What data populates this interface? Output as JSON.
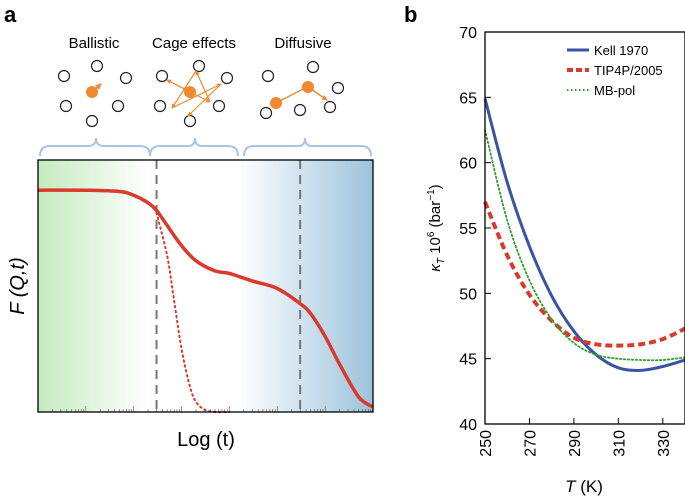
{
  "panels": {
    "a": {
      "label": "a"
    },
    "b": {
      "label": "b"
    }
  },
  "regimes": [
    "Ballistic",
    "Cage effects",
    "Diffusive"
  ],
  "colors": {
    "kell": "#3a53a4",
    "tip4p": "#d93a2b",
    "mbpol": "#2ca02c",
    "fqt": "#d93a2b",
    "particle": "#f08a30",
    "brace": "#aac4e6",
    "divider": "#777777",
    "green_bg": "#c6ebc0",
    "blue_bg": "#9cc3dc"
  },
  "chart_data": [
    {
      "type": "line",
      "panel": "a",
      "title": "",
      "xlabel": "Log (t)",
      "ylabel": "F (Q,t)",
      "xscale": "log",
      "xlim": [
        0.01,
        100000
      ],
      "ylim": [
        0,
        1
      ],
      "ticks_labeled": false,
      "dividers_x": [
        3,
        3000
      ],
      "series": [
        {
          "name": "F(Q,t)",
          "style": "solid",
          "x": [
            0.01,
            0.1,
            0.5,
            1,
            2,
            3,
            5,
            10,
            20,
            50,
            100,
            300,
            1000,
            3000,
            5000,
            10000,
            20000,
            50000,
            100000
          ],
          "y": [
            0.88,
            0.88,
            0.875,
            0.86,
            0.83,
            0.8,
            0.74,
            0.66,
            0.6,
            0.56,
            0.55,
            0.52,
            0.49,
            0.43,
            0.39,
            0.3,
            0.19,
            0.06,
            0.02
          ]
        },
        {
          "name": "ballistic continuation",
          "style": "dotted",
          "x": [
            3,
            5,
            7,
            10,
            15,
            20,
            30,
            50,
            100
          ],
          "y": [
            0.79,
            0.62,
            0.44,
            0.25,
            0.1,
            0.04,
            0.01,
            0.0,
            0.0
          ]
        }
      ]
    },
    {
      "type": "line",
      "panel": "b",
      "title": "",
      "xlabel": "T (K)",
      "ylabel": "κT 10⁶ (bar⁻¹)",
      "xlim": [
        250,
        340
      ],
      "ylim": [
        40,
        70
      ],
      "xticks": [
        250,
        270,
        290,
        310,
        330
      ],
      "yticks": [
        40,
        45,
        50,
        55,
        60,
        65,
        70
      ],
      "legend_position": "top-right",
      "series": [
        {
          "name": "Kell 1970",
          "style": "solid",
          "x": [
            250,
            260,
            270,
            280,
            290,
            300,
            310,
            320,
            330,
            340
          ],
          "y": [
            64.9,
            58.5,
            53.6,
            49.8,
            47.1,
            45.3,
            44.3,
            44.1,
            44.4,
            44.9
          ]
        },
        {
          "name": "TIP4P/2005",
          "style": "dashed",
          "x": [
            250,
            260,
            270,
            280,
            290,
            300,
            310,
            320,
            330,
            340
          ],
          "y": [
            57.0,
            52.9,
            49.9,
            47.9,
            46.6,
            46.1,
            46.0,
            46.1,
            46.5,
            47.3
          ]
        },
        {
          "name": "MB-pol",
          "style": "dotted",
          "x": [
            250,
            260,
            270,
            280,
            290,
            300,
            310,
            320,
            330,
            340
          ],
          "y": [
            62.5,
            55.6,
            51.0,
            48.0,
            46.2,
            45.3,
            45.0,
            44.9,
            44.9,
            45.1
          ]
        }
      ]
    }
  ]
}
